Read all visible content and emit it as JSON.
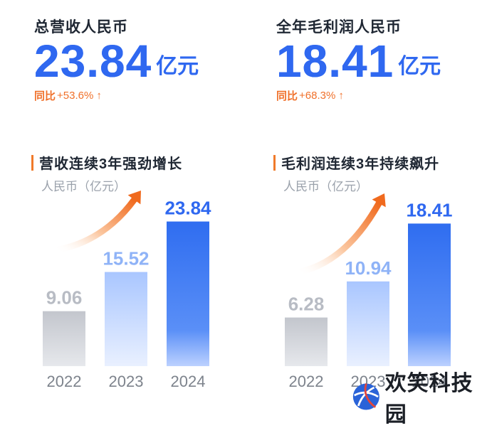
{
  "kpis": [
    {
      "label": "总营收人民币",
      "value": "23.84",
      "unit": "亿元",
      "yoy_label": "同比",
      "yoy_value": "+53.6%",
      "arrow": "↑"
    },
    {
      "label": "全年毛利润人民币",
      "value": "18.41",
      "unit": "亿元",
      "yoy_label": "同比",
      "yoy_value": "+68.3%",
      "arrow": "↑"
    }
  ],
  "chart_data": [
    {
      "type": "bar",
      "title": "营收连续3年强劲增长",
      "ylabel": "人民币（亿元）",
      "categories": [
        "2022",
        "2023",
        "2024"
      ],
      "values": [
        9.06,
        15.52,
        23.84
      ],
      "value_labels": [
        "9.06",
        "15.52",
        "23.84"
      ],
      "ylim": [
        0,
        30
      ]
    },
    {
      "type": "bar",
      "title": "毛利润连续3年持续飙升",
      "ylabel": "人民币（亿元）",
      "categories": [
        "2022",
        "2023",
        "2024"
      ],
      "values": [
        6.28,
        10.94,
        18.41
      ],
      "value_labels": [
        "6.28",
        "10.94",
        "18.41"
      ],
      "ylim": [
        0,
        23.5
      ]
    }
  ],
  "watermark": {
    "text": "欢笑科技园"
  },
  "colors": {
    "accent_blue": "#2f68f0",
    "accent_orange": "#f0702a",
    "bar_gray": "#c6c9d0"
  }
}
